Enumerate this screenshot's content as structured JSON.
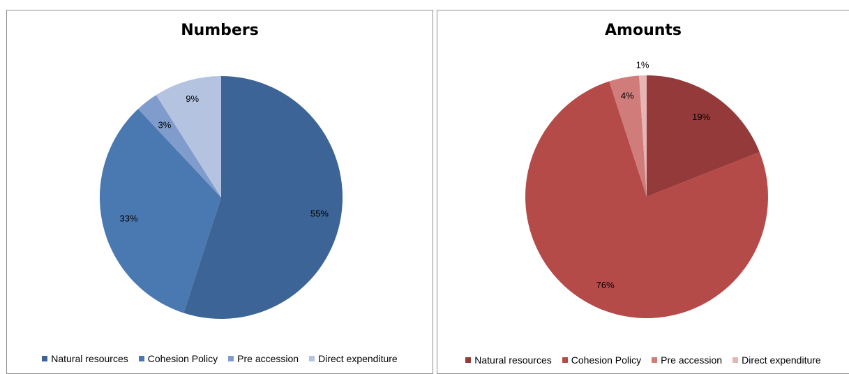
{
  "chart_data": [
    {
      "type": "pie",
      "title": "Numbers",
      "categories": [
        "Natural resources",
        "Cohesion Policy",
        "Pre accession",
        "Direct expenditure"
      ],
      "values": [
        55,
        33,
        3,
        9
      ],
      "labels": [
        "55%",
        "33%",
        "3%",
        "9%"
      ],
      "colors": [
        "#3c6496",
        "#4a78b0",
        "#7f9ccc",
        "#b4c3e0"
      ],
      "legend_position": "bottom"
    },
    {
      "type": "pie",
      "title": "Amounts",
      "categories": [
        "Natural resources",
        "Cohesion Policy",
        "Pre accession",
        "Direct expenditure"
      ],
      "values": [
        19,
        76,
        4,
        1
      ],
      "labels": [
        "19%",
        "76%",
        "4%",
        "1%"
      ],
      "colors": [
        "#953a3a",
        "#b54b49",
        "#d07c7b",
        "#e6b5b4"
      ],
      "legend_position": "bottom"
    }
  ]
}
